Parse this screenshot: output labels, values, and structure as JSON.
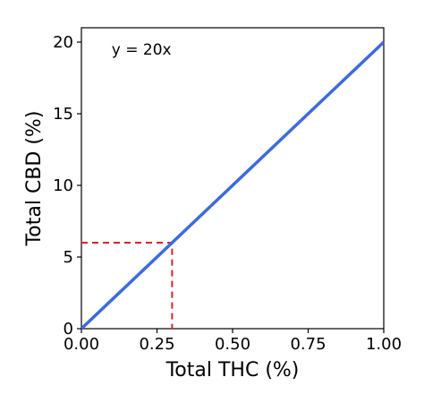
{
  "chart_data": {
    "type": "line",
    "title": "",
    "xlabel": "Total THC (%)",
    "ylabel": "Total CBD (%)",
    "xlim": [
      0,
      1
    ],
    "ylim": [
      0,
      21
    ],
    "grid": false,
    "legend": "none",
    "x_ticks": [
      0,
      0.25,
      0.5,
      0.75,
      1.0
    ],
    "x_tick_labels": [
      "0.00",
      "0.25",
      "0.50",
      "0.75",
      "1.00"
    ],
    "y_ticks": [
      0,
      5,
      10,
      15,
      20
    ],
    "y_tick_labels": [
      "0",
      "5",
      "10",
      "15",
      "20"
    ],
    "series": [
      {
        "x": [
          0,
          1.0
        ],
        "y": [
          0,
          20
        ],
        "color": "#3b6be0"
      }
    ],
    "annotations": [
      {
        "text": "y = 20x",
        "x": 0.1,
        "y": 19.5
      }
    ],
    "reference_lines": [
      {
        "x": [
          0,
          0.3,
          0.3
        ],
        "y": [
          6,
          6,
          0
        ],
        "style": "dashed",
        "color": "#e0202a"
      }
    ]
  }
}
